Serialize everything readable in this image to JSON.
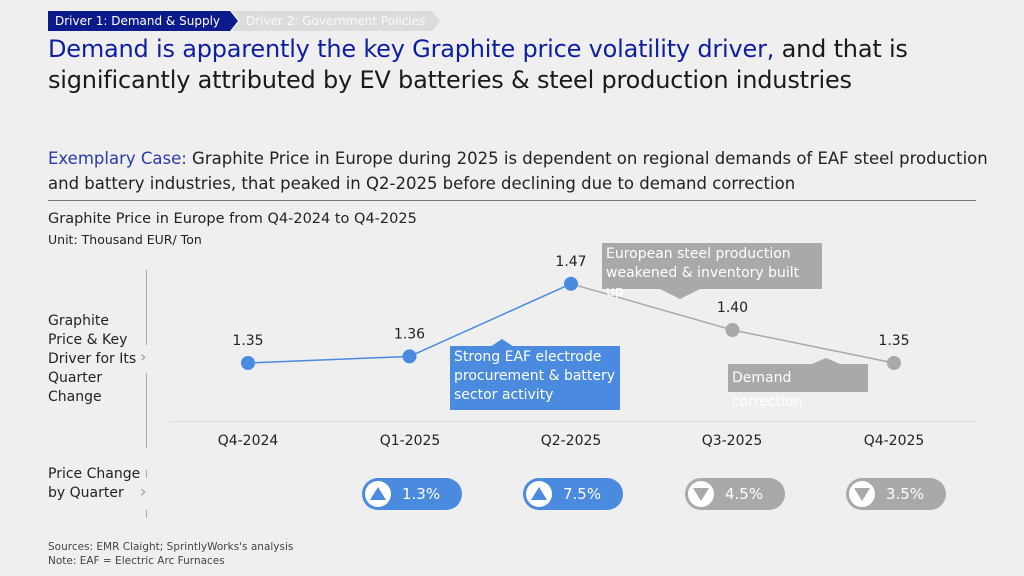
{
  "tabs": [
    {
      "label": "Driver 1: Demand & Supply",
      "active": true
    },
    {
      "label": "Driver 2: Government Policies",
      "active": false
    }
  ],
  "title": {
    "highlight": "Demand is apparently the key Graphite price volatility driver,",
    "rest": " and that is significantly attributed by EV batteries & steel production industries"
  },
  "subtitle": {
    "highlight": "Exemplary Case:",
    "rest": " Graphite Price in Europe during 2025 is dependent on regional demands of EAF steel production and battery industries, that peaked in Q2-2025 before declining due to demand correction"
  },
  "row_labels": {
    "price": "Graphite Price & Key Driver for Its Quarter Change",
    "change": "Price Change by Quarter"
  },
  "colors": {
    "accent_blue": "#4a8be0",
    "dark_blue": "#0d1fa0",
    "gray": "#a9a9a9"
  },
  "chart_data": {
    "type": "line",
    "title": "Graphite Price in Europe from Q4-2024 to Q4-2025",
    "unit": "Unit: Thousand EUR/ Ton",
    "categories": [
      "Q4-2024",
      "Q1-2025",
      "Q2-2025",
      "Q3-2025",
      "Q4-2025"
    ],
    "values": [
      1.35,
      1.36,
      1.47,
      1.4,
      1.35
    ],
    "value_labels": [
      "1.35",
      "1.36",
      "1.47",
      "1.40",
      "1.35"
    ],
    "point_colors": [
      "#4a8be0",
      "#4a8be0",
      "#4a8be0",
      "#a9a9a9",
      "#a9a9a9"
    ],
    "segment_colors": [
      "#4a8be0",
      "#4a8be0",
      "#a9a9a9",
      "#a9a9a9"
    ],
    "annotations": [
      {
        "text": "Strong EAF electrode procurement & battery sector activity",
        "color": "#4a8be0"
      },
      {
        "text": "European steel production weakened & inventory built up",
        "color": "#a9a9a9"
      },
      {
        "text": "Demand correction",
        "color": "#a9a9a9"
      }
    ],
    "xlabel": "",
    "ylabel": "",
    "grid": false
  },
  "price_changes": [
    {
      "quarter": "Q1-2025",
      "direction": "up",
      "label": "1.3%"
    },
    {
      "quarter": "Q2-2025",
      "direction": "up",
      "label": "7.5%"
    },
    {
      "quarter": "Q3-2025",
      "direction": "down",
      "label": "4.5%"
    },
    {
      "quarter": "Q4-2025",
      "direction": "down",
      "label": "3.5%"
    }
  ],
  "footer": {
    "sources": "Sources: EMR Claight; SprintlyWorks's analysis",
    "note": "Note: EAF = Electric Arc Furnaces"
  }
}
